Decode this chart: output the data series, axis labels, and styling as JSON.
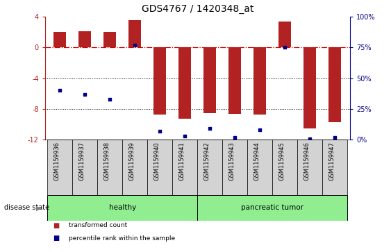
{
  "title": "GDS4767 / 1420348_at",
  "samples": [
    "GSM1159936",
    "GSM1159937",
    "GSM1159938",
    "GSM1159939",
    "GSM1159940",
    "GSM1159941",
    "GSM1159942",
    "GSM1159943",
    "GSM1159944",
    "GSM1159945",
    "GSM1159946",
    "GSM1159947"
  ],
  "transformed_count": [
    2.0,
    2.1,
    2.0,
    3.5,
    -8.7,
    -9.3,
    -8.5,
    -8.6,
    -8.7,
    3.3,
    -10.5,
    -9.7
  ],
  "percentile_rank": [
    40,
    37,
    33,
    77,
    7,
    3,
    9,
    2,
    8,
    75,
    1,
    2
  ],
  "bar_color": "#b22222",
  "dot_color": "#00008b",
  "background_color": "#ffffff",
  "plot_bg_color": "#ffffff",
  "ylim_left": [
    -12,
    4
  ],
  "ylim_right": [
    0,
    100
  ],
  "yticks_left": [
    4,
    0,
    -4,
    -8,
    -12
  ],
  "yticks_right": [
    100,
    75,
    50,
    25,
    0
  ],
  "hline_color": "#cc0000",
  "dotted_lines": [
    -4,
    -8
  ],
  "dotted_color": "#000000",
  "group_labels": [
    "healthy",
    "pancreatic tumor"
  ],
  "healthy_count": 6,
  "tumor_count": 6,
  "group_color": "#90ee90",
  "disease_state_label": "disease state",
  "legend_items": [
    {
      "label": "transformed count",
      "color": "#b22222"
    },
    {
      "label": "percentile rank within the sample",
      "color": "#00008b"
    }
  ],
  "bar_width": 0.5,
  "title_fontsize": 10,
  "tick_fontsize": 7,
  "xtick_fontsize": 6
}
